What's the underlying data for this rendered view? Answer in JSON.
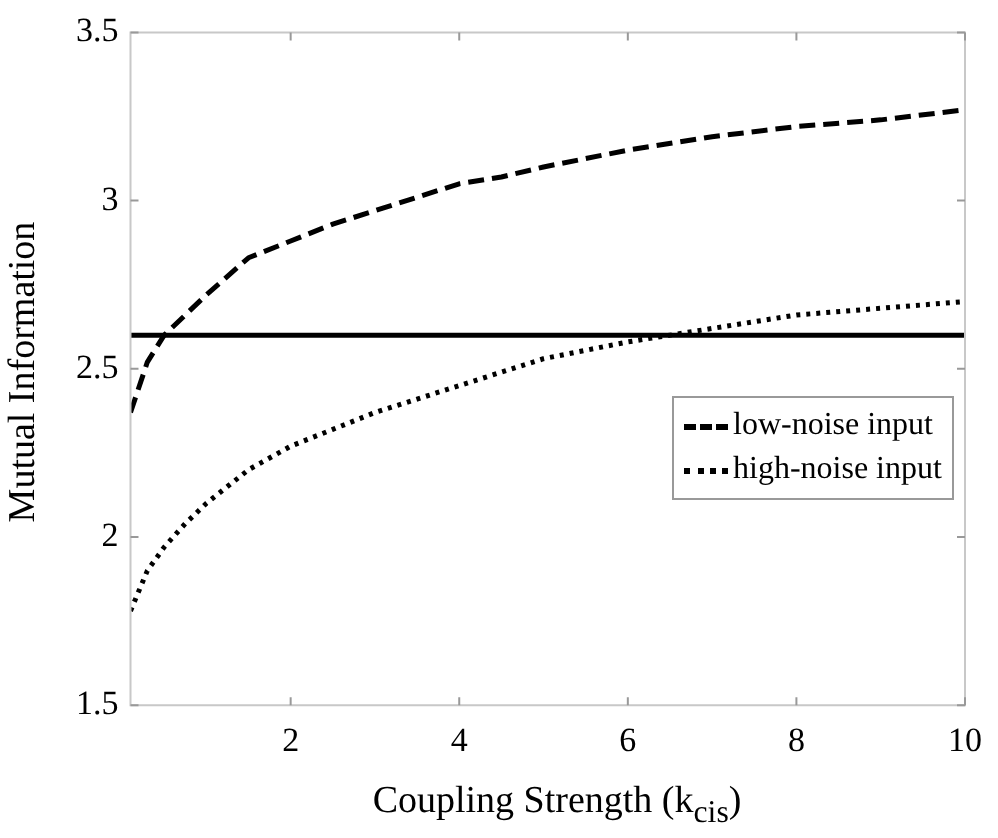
{
  "chart_data": {
    "type": "line",
    "xlabel": "Coupling Strength (k$_{cis}$)",
    "ylabel": "Mutual Information",
    "xlim": [
      0.1,
      10
    ],
    "xticks": [
      2,
      4,
      6,
      8,
      10
    ],
    "ylim": [
      1.5,
      3.5
    ],
    "yticks": [
      1.5,
      2,
      2.5,
      3,
      3.5
    ],
    "grid": false,
    "legend": "right",
    "marker": "none",
    "series": [
      {
        "name": "low-noise input",
        "color": "#000000",
        "line_style": "dashed",
        "x": [
          0.1,
          0.3,
          0.5,
          0.75,
          1,
          1.5,
          2,
          2.5,
          3,
          3.5,
          4,
          4.5,
          5,
          6,
          7,
          8,
          9,
          10
        ],
        "values": [
          2.37,
          2.52,
          2.6,
          2.66,
          2.72,
          2.83,
          2.88,
          2.93,
          2.97,
          3.01,
          3.05,
          3.07,
          3.1,
          3.15,
          3.19,
          3.22,
          3.24,
          3.27
        ]
      },
      {
        "name": "high-noise input",
        "color": "#000000",
        "line_style": "dotted",
        "x": [
          0.1,
          0.3,
          0.5,
          0.75,
          1,
          1.5,
          2,
          2.5,
          3,
          3.5,
          4,
          4.5,
          5,
          6,
          7,
          8,
          9,
          10
        ],
        "values": [
          1.78,
          1.9,
          1.97,
          2.04,
          2.1,
          2.2,
          2.27,
          2.32,
          2.37,
          2.41,
          2.45,
          2.49,
          2.53,
          2.58,
          2.62,
          2.66,
          2.68,
          2.7
        ]
      }
    ],
    "ref_lines": [
      {
        "axis": "y",
        "value": 2.6,
        "color": "#000000",
        "line_style": "solid"
      }
    ]
  }
}
